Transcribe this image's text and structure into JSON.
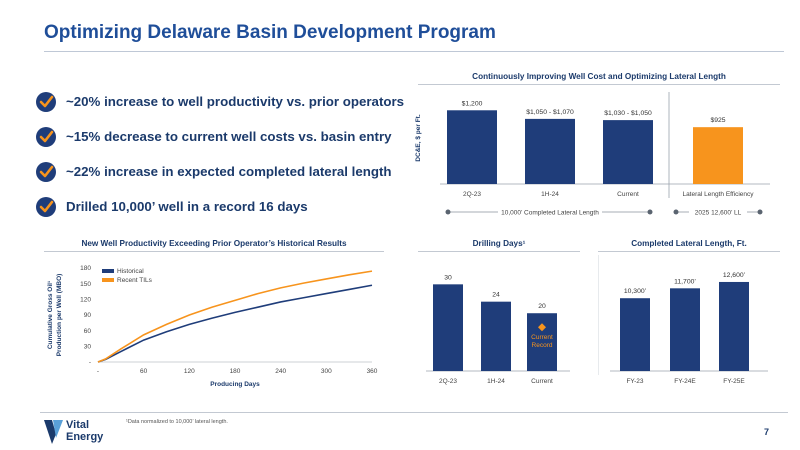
{
  "title": "Optimizing Delaware Basin Development Program",
  "bullets": [
    "~20% increase to well productivity vs. prior operators",
    "~15% decrease to current well costs vs. basin entry",
    "~22% increase in expected completed lateral length",
    "Drilled 10,000’ well in a record 16 days"
  ],
  "colors": {
    "navy": "#1f3d7a",
    "orange": "#f7941d",
    "title_blue": "#1f4e99"
  },
  "footnote": "¹Data normalized to 10,000’ lateral length.",
  "logo": {
    "line1": "Vital",
    "line2": "Energy"
  },
  "page_number": "7",
  "chart_data": [
    {
      "type": "bar",
      "title": "Continuously Improving Well Cost and Optimizing Lateral Length",
      "ylabel": "DC&E, $ per Ft.",
      "categories": [
        "2Q-23",
        "1H-24",
        "Current",
        "Lateral Length Efficiency"
      ],
      "values": [
        1200,
        1060,
        1040,
        925
      ],
      "value_labels": [
        "$1,200",
        "$1,050 - $1,070",
        "$1,030 - $1,050",
        "$925"
      ],
      "bar_colors": [
        "#1f3d7a",
        "#1f3d7a",
        "#1f3d7a",
        "#f7941d"
      ],
      "ylim": [
        0,
        1400
      ],
      "range_labels": [
        "10,000’ Completed Lateral Length",
        "2025 12,600’ LL"
      ]
    },
    {
      "type": "line",
      "title": "New Well Productivity Exceeding Prior Operator’s Historical Results",
      "xlabel": "Producing Days",
      "ylabel": "Cumulative Gross Oil¹ Production per Well (MBO)",
      "x_ticks": [
        "-",
        "60",
        "120",
        "180",
        "240",
        "300",
        "360"
      ],
      "y_ticks": [
        "-",
        "30",
        "60",
        "90",
        "120",
        "150",
        "180"
      ],
      "xlim": [
        0,
        360
      ],
      "ylim": [
        0,
        180
      ],
      "legend_position": "top-left",
      "series": [
        {
          "name": "Historical",
          "color": "#1f3d7a",
          "x": [
            0,
            10,
            30,
            60,
            90,
            120,
            150,
            180,
            210,
            240,
            270,
            300,
            330,
            360
          ],
          "y": [
            0,
            5,
            20,
            42,
            58,
            72,
            84,
            95,
            105,
            115,
            123,
            131,
            139,
            147
          ]
        },
        {
          "name": "Recent TILs",
          "color": "#f7941d",
          "x": [
            0,
            10,
            30,
            60,
            90,
            120,
            150,
            180,
            210,
            240,
            270,
            300,
            330,
            360
          ],
          "y": [
            0,
            6,
            25,
            52,
            72,
            90,
            105,
            118,
            131,
            142,
            151,
            159,
            167,
            174
          ]
        }
      ]
    },
    {
      "type": "bar",
      "title": "Drilling Days¹",
      "categories": [
        "2Q-23",
        "1H-24",
        "Current"
      ],
      "values": [
        30,
        24,
        20
      ],
      "value_labels": [
        "30",
        "24",
        "20"
      ],
      "ylim": [
        0,
        36
      ],
      "annotation": [
        "Current",
        "Record"
      ]
    },
    {
      "type": "bar",
      "title": "Completed Lateral Length, Ft.",
      "categories": [
        "FY-23",
        "FY-24E",
        "FY-25E"
      ],
      "values": [
        10300,
        11700,
        12600
      ],
      "value_labels": [
        "10,300’",
        "11,700’",
        "12,600’"
      ],
      "ylim": [
        0,
        15000
      ]
    }
  ]
}
